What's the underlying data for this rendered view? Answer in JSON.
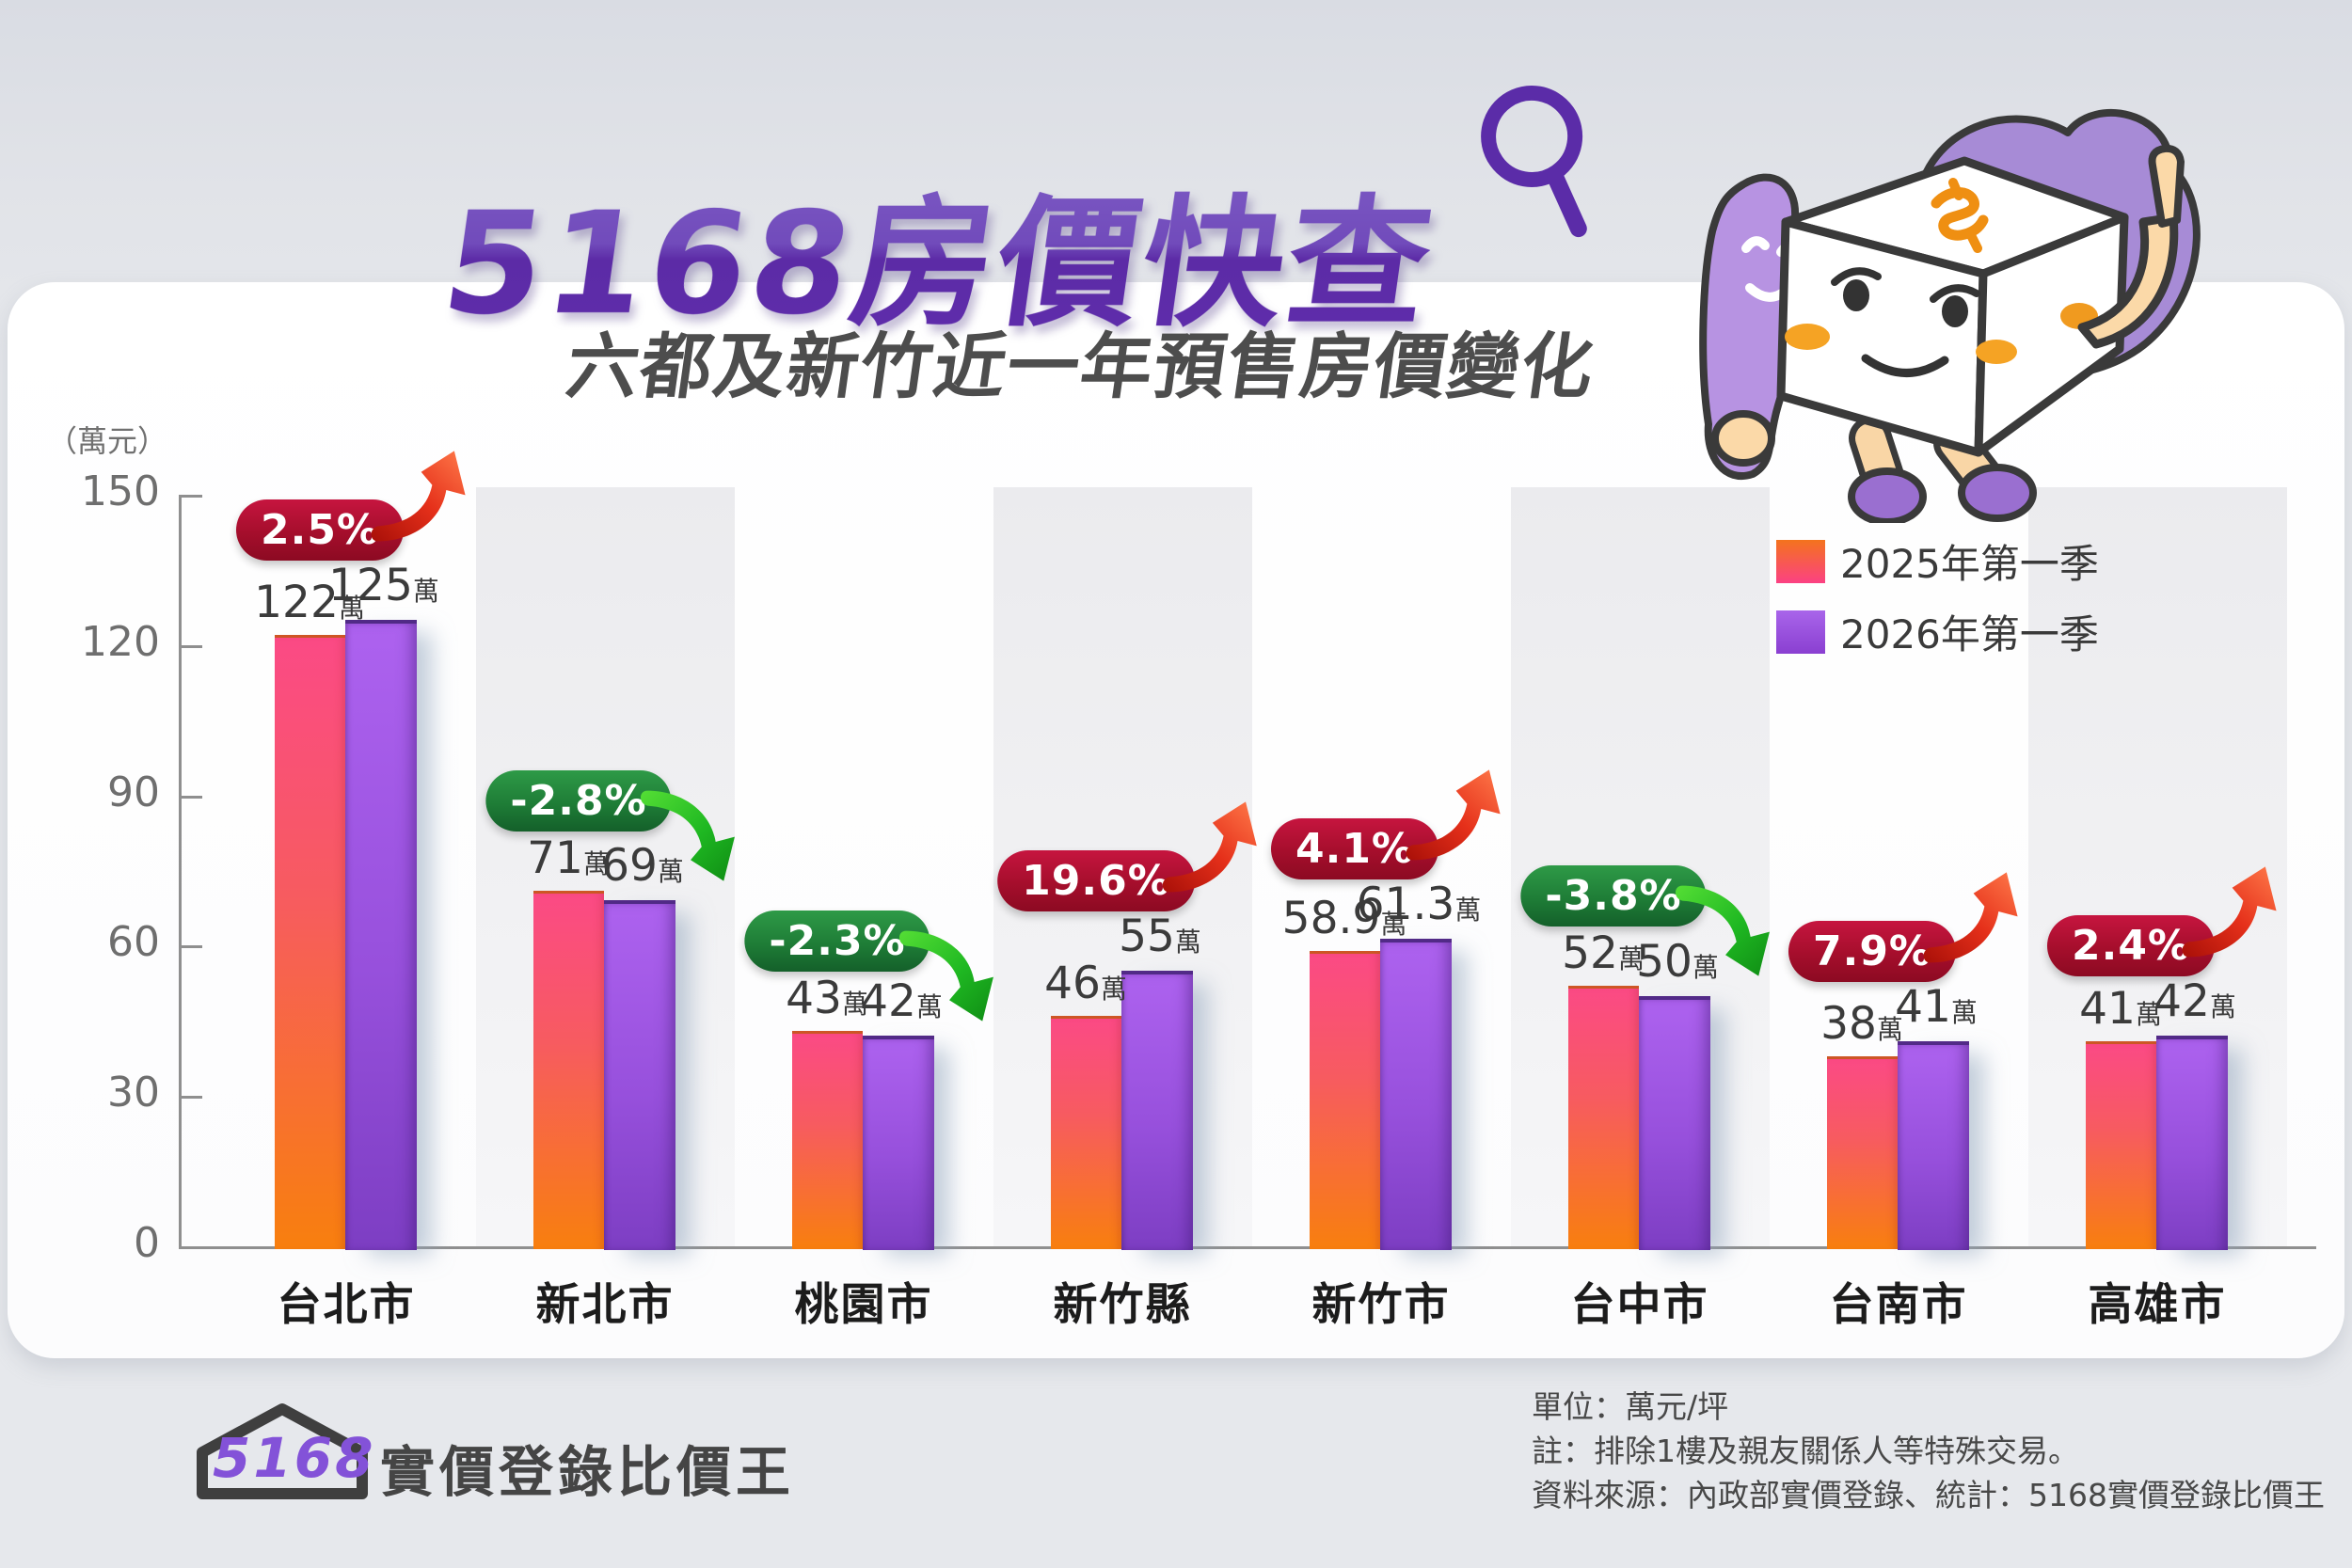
{
  "title": "5168房價快查",
  "subtitle": "六都及新竹近一年預售房價變化",
  "y_axis": {
    "unit_label": "（萬元）",
    "ticks": [
      "150",
      "120",
      "90",
      "60",
      "30",
      "0"
    ]
  },
  "legend": {
    "items": [
      {
        "label": "2025年第一季"
      },
      {
        "label": "2026年第一季"
      }
    ]
  },
  "chart_data": {
    "type": "bar",
    "title": "六都及新竹近一年預售房價變化",
    "categories": [
      "台北市",
      "新北市",
      "桃園市",
      "新竹縣",
      "新竹市",
      "台中市",
      "台南市",
      "高雄市"
    ],
    "series": [
      {
        "name": "2025年第一季",
        "values": [
          122,
          71,
          43,
          46,
          58.9,
          52,
          38,
          41
        ],
        "labels": [
          "122",
          "71",
          "43",
          "46",
          "58.9",
          "52",
          "38",
          "41"
        ]
      },
      {
        "name": "2026年第一季",
        "values": [
          125,
          69,
          42,
          55,
          61.3,
          50,
          41,
          42
        ],
        "labels": [
          "125",
          "69",
          "42",
          "55",
          "61.3",
          "50",
          "41",
          "42"
        ]
      }
    ],
    "value_suffix": "萬",
    "change_badges": [
      "2.5%",
      "-2.8%",
      "-2.3%",
      "19.6%",
      "4.1%",
      "-3.8%",
      "7.9%",
      "2.4%"
    ],
    "ylim": [
      0,
      150
    ],
    "ylabel": "（萬元）",
    "grid": false,
    "legend_position": "upper-right",
    "colors": {
      "series1_top": "#fb4a85",
      "series1_bottom": "#f87f0e",
      "series2_top": "#ad62ef",
      "series2_bottom": "#7d3ec3",
      "badge_up": "#a50e2c",
      "badge_down": "#1d7a35",
      "title_purple": "#5e2ca8"
    }
  },
  "footer": {
    "logo_number": "5168",
    "logo_text": "實價登錄比價王",
    "notes": [
      "單位：萬元/坪",
      "註：排除1樓及親友關係人等特殊交易。",
      "資料來源：內政部實價登錄、統計：5168實價登錄比價王"
    ]
  }
}
